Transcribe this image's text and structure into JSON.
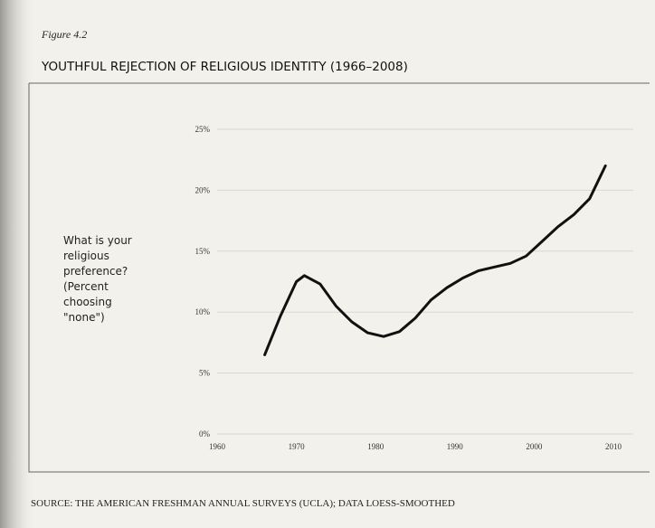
{
  "chart_data": {
    "type": "line",
    "figure_label": "Figure 4.2",
    "title": "YOUTHFUL REJECTION OF RELIGIOUS IDENTITY (1966–2008)",
    "y_label_lines": [
      "What is your",
      "religious",
      "preference?",
      "(Percent",
      "choosing",
      "\"none\")"
    ],
    "source": "SOURCE: THE AMERICAN FRESHMAN ANNUAL SURVEYS (UCLA); DATA LOESS-SMOOTHED",
    "x": [
      1966,
      1968,
      1970,
      1971,
      1973,
      1975,
      1977,
      1979,
      1981,
      1983,
      1985,
      1987,
      1989,
      1991,
      1993,
      1995,
      1997,
      1999,
      2001,
      2003,
      2005,
      2007,
      2009
    ],
    "series": [
      {
        "color": "#111111",
        "values": [
          6.5,
          9.7,
          12.5,
          13.0,
          12.3,
          10.5,
          9.2,
          8.3,
          8.0,
          8.4,
          9.5,
          11.0,
          12.0,
          12.8,
          13.4,
          13.7,
          14.0,
          14.6,
          15.8,
          17.0,
          18.0,
          19.3,
          22.0
        ]
      }
    ],
    "xlim": [
      1960,
      2010
    ],
    "xticks": [
      1960,
      1970,
      1980,
      1990,
      2000,
      2010
    ],
    "ylim": [
      0,
      25
    ],
    "yticks": [
      {
        "value": 0,
        "label": "0%"
      },
      {
        "value": 5,
        "label": "5%"
      },
      {
        "value": 10,
        "label": "10%"
      },
      {
        "value": 15,
        "label": "15%"
      },
      {
        "value": 20,
        "label": "20%"
      },
      {
        "value": 25,
        "label": "25%"
      }
    ],
    "grid": true
  }
}
